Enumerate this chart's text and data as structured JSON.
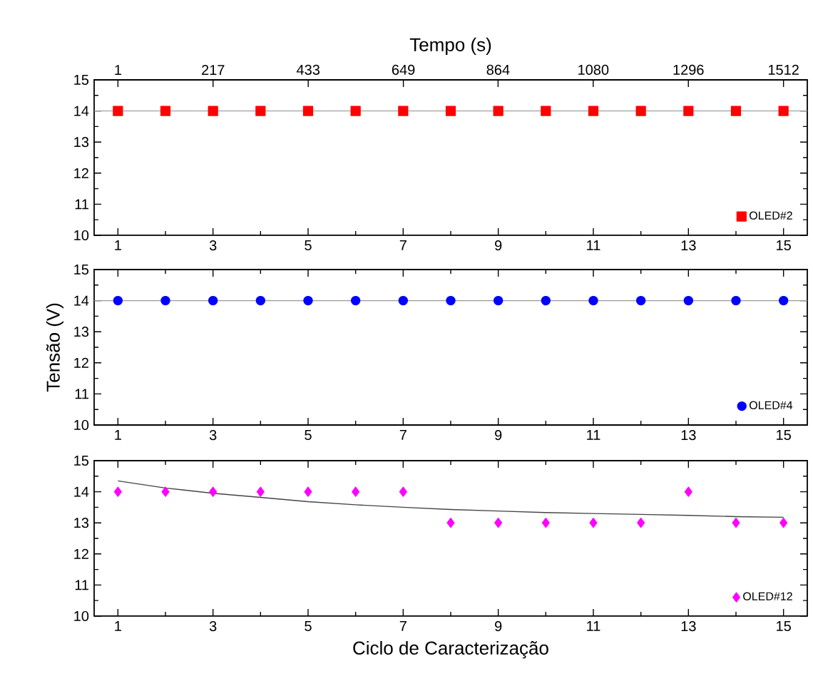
{
  "chart_data": [
    {
      "type": "scatter",
      "x2label": "Tempo (s)",
      "x": [
        1,
        2,
        3,
        4,
        5,
        6,
        7,
        8,
        9,
        10,
        11,
        12,
        13,
        14,
        15
      ],
      "xlim": [
        0.5,
        15.5
      ],
      "xticks": [
        1,
        3,
        5,
        7,
        9,
        11,
        13,
        15
      ],
      "x2lim": [
        -53,
        1566
      ],
      "x2ticks": [
        1,
        217,
        433,
        649,
        864,
        1080,
        1296,
        1512
      ],
      "ylim": [
        10,
        15
      ],
      "yticks": [
        10,
        11,
        12,
        13,
        14,
        15
      ],
      "legend": "bottom right",
      "series": [
        {
          "name": "OLED#2",
          "color": "#ff0000",
          "marker": "square",
          "values": [
            14,
            14,
            14,
            14,
            14,
            14,
            14,
            14,
            14,
            14,
            14,
            14,
            14,
            14,
            14
          ]
        },
        {
          "type": "line",
          "color": "#999999",
          "marker": "none",
          "x": [
            0.5,
            15.5
          ],
          "values": [
            14,
            14
          ]
        }
      ]
    },
    {
      "type": "scatter",
      "ylabel": "Tensão (V)",
      "x": [
        1,
        2,
        3,
        4,
        5,
        6,
        7,
        8,
        9,
        10,
        11,
        12,
        13,
        14,
        15
      ],
      "xlim": [
        0.5,
        15.5
      ],
      "xticks": [
        1,
        3,
        5,
        7,
        9,
        11,
        13,
        15
      ],
      "ylim": [
        10,
        15
      ],
      "yticks": [
        10,
        11,
        12,
        13,
        14,
        15
      ],
      "legend": "bottom right",
      "series": [
        {
          "name": "OLED#4",
          "color": "#0000ff",
          "marker": "circle",
          "values": [
            14,
            14,
            14,
            14,
            14,
            14,
            14,
            14,
            14,
            14,
            14,
            14,
            14,
            14,
            14
          ]
        },
        {
          "type": "line",
          "color": "#999999",
          "marker": "none",
          "x": [
            0.5,
            15.5
          ],
          "values": [
            14,
            14
          ]
        }
      ]
    },
    {
      "type": "scatter",
      "xlabel": "Ciclo de Caracterização",
      "x": [
        1,
        2,
        3,
        4,
        5,
        6,
        7,
        8,
        9,
        10,
        11,
        12,
        13,
        14,
        15
      ],
      "xlim": [
        0.5,
        15.5
      ],
      "xticks": [
        1,
        3,
        5,
        7,
        9,
        11,
        13,
        15
      ],
      "ylim": [
        10,
        15
      ],
      "yticks": [
        10,
        11,
        12,
        13,
        14,
        15
      ],
      "legend": "bottom right",
      "series": [
        {
          "name": "OLED#12",
          "color": "#ff00ff",
          "marker": "diamond",
          "values": [
            14,
            14,
            14,
            14,
            14,
            14,
            14,
            13,
            13,
            13,
            13,
            13,
            14,
            13,
            13
          ]
        },
        {
          "type": "line",
          "color": "#444444",
          "marker": "none",
          "x": [
            1,
            2,
            3,
            4,
            5,
            6,
            7,
            8,
            9,
            10,
            11,
            12,
            13,
            14,
            15
          ],
          "values": [
            14.35,
            14.12,
            13.95,
            13.82,
            13.68,
            13.58,
            13.5,
            13.43,
            13.38,
            13.33,
            13.3,
            13.27,
            13.24,
            13.2,
            13.18
          ]
        }
      ]
    }
  ]
}
